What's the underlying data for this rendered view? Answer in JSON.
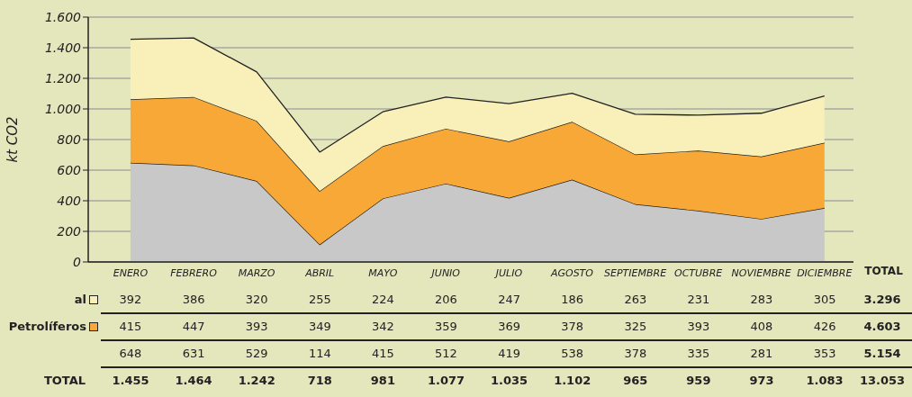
{
  "chart_data": {
    "type": "area",
    "stacked": true,
    "ylabel": "kt CO2",
    "categories": [
      "ENERO",
      "FEBRERO",
      "MARZO",
      "ABRIL",
      "MAYO",
      "JUNIO",
      "JULIO",
      "AGOSTO",
      "SEPTIEMBRE",
      "OCTUBRE",
      "NOVIEMBRE",
      "DICIEMBRE"
    ],
    "series": [
      {
        "name": null,
        "color": "#c8c8c8",
        "values": [
          648,
          631,
          529,
          114,
          415,
          512,
          419,
          538,
          378,
          335,
          281,
          353
        ]
      },
      {
        "name": "Petrolíferos",
        "color": "#f7a836",
        "values": [
          415,
          447,
          393,
          349,
          342,
          359,
          369,
          378,
          325,
          393,
          408,
          426
        ]
      },
      {
        "name": "al",
        "color": "#f8f0b8",
        "values": [
          392,
          386,
          320,
          255,
          224,
          206,
          247,
          186,
          263,
          231,
          283,
          305
        ]
      }
    ],
    "ylim": [
      0,
      1600
    ],
    "yticks": [
      0,
      200,
      400,
      600,
      800,
      {
        "value": 1000,
        "label": "1.000"
      },
      {
        "value": 1200,
        "label": "1.200"
      },
      {
        "value": 1400,
        "label": "1.400"
      },
      {
        "value": 1600,
        "label": "1.600"
      }
    ],
    "grid": "y",
    "legend": "bottom",
    "data_labels": true,
    "annotations": [
      "TOTAL",
      "5.154",
      "4.603",
      "3.296",
      "TOTAL",
      "13.053",
      "1.455",
      "1.464",
      "1.242",
      "718",
      "981",
      "1.077",
      "1.035",
      "1.102",
      "965",
      "959",
      "973",
      "1.083"
    ]
  }
}
